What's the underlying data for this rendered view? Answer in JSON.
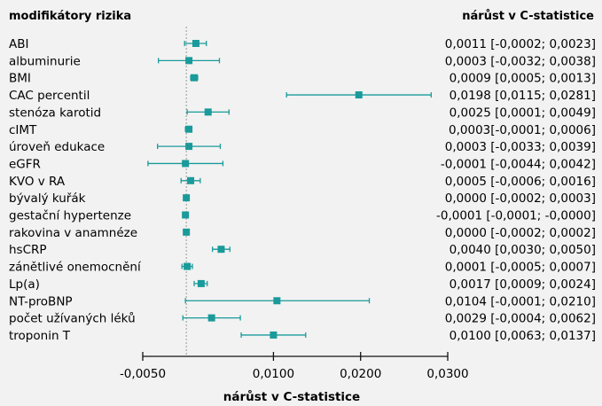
{
  "chart_data": {
    "type": "forest",
    "left_header": "modifikátory rizika",
    "right_header": "nárůst v C-statistice",
    "xlabel": "nárůst v C-statistice",
    "xlim": [
      -0.005,
      0.03
    ],
    "xticks": [
      -0.005,
      0.01,
      0.02,
      0.03
    ],
    "xtick_labels": [
      "-0,0050",
      "0,0100",
      "0,0200",
      "0,0300"
    ],
    "reference_line": 0,
    "colors": {
      "marker": "#1a9a9a",
      "reference": "#999999",
      "text": "#111111"
    },
    "rows": [
      {
        "label": "ABI",
        "estimate": 0.0011,
        "lower": -0.0002,
        "upper": 0.0023,
        "text": "0,0011 [-0,0002; 0,0023]"
      },
      {
        "label": "albuminurie",
        "estimate": 0.0003,
        "lower": -0.0032,
        "upper": 0.0038,
        "text": "0,0003 [-0,0032; 0,0038]"
      },
      {
        "label": "BMI",
        "estimate": 0.0009,
        "lower": 0.0005,
        "upper": 0.0013,
        "text": "0,0009 [0,0005; 0,0013]"
      },
      {
        "label": "CAC percentil",
        "estimate": 0.0198,
        "lower": 0.0115,
        "upper": 0.0281,
        "text": "0,0198 [0,0115; 0,0281]"
      },
      {
        "label": "stenóza karotid",
        "estimate": 0.0025,
        "lower": 0.0001,
        "upper": 0.0049,
        "text": "0,0025 [0,0001; 0,0049]"
      },
      {
        "label": "cIMT",
        "estimate": 0.0003,
        "lower": -0.0001,
        "upper": 0.0006,
        "text": "0,0003[-0,0001; 0,0006]"
      },
      {
        "label": "úroveň edukace",
        "estimate": 0.0003,
        "lower": -0.0033,
        "upper": 0.0039,
        "text": "0,0003 [-0,0033; 0,0039]"
      },
      {
        "label": "eGFR",
        "estimate": -0.0001,
        "lower": -0.0044,
        "upper": 0.0042,
        "text": "-0,0001 [-0,0044; 0,0042]"
      },
      {
        "label": "KVO v RA",
        "estimate": 0.0005,
        "lower": -0.0006,
        "upper": 0.0016,
        "text": "0,0005 [-0,0006; 0,0016]"
      },
      {
        "label": "bývalý kuřák",
        "estimate": 0.0,
        "lower": -0.0002,
        "upper": 0.0003,
        "text": "0,0000 [-0,0002; 0,0003]"
      },
      {
        "label": "gestační hypertenze",
        "estimate": -0.0001,
        "lower": -0.0001,
        "upper": -0.0,
        "text": "-0,0001 [-0,0001; -0,0000]"
      },
      {
        "label": "rakovina v anamnéze",
        "estimate": 0.0,
        "lower": -0.0002,
        "upper": 0.0002,
        "text": "0,0000 [-0,0002; 0,0002]"
      },
      {
        "label": "hsCRP",
        "estimate": 0.004,
        "lower": 0.003,
        "upper": 0.005,
        "text": "0,0040 [0,0030; 0,0050]"
      },
      {
        "label": "zánětlivé onemocnění",
        "estimate": 0.0001,
        "lower": -0.0005,
        "upper": 0.0007,
        "text": "0,0001 [-0,0005; 0,0007]"
      },
      {
        "label": "Lp(a)",
        "estimate": 0.0017,
        "lower": 0.0009,
        "upper": 0.0024,
        "text": "0,0017 [0,0009; 0,0024]"
      },
      {
        "label": "NT-proBNP",
        "estimate": 0.0104,
        "lower": -0.0001,
        "upper": 0.021,
        "text": "0,0104 [-0,0001; 0,0210]"
      },
      {
        "label": "počet užívaných léků",
        "estimate": 0.0029,
        "lower": -0.0004,
        "upper": 0.0062,
        "text": "0,0029 [-0,0004; 0,0062]"
      },
      {
        "label": "troponin T",
        "estimate": 0.01,
        "lower": 0.0063,
        "upper": 0.0137,
        "text": "0,0100 [0,0063; 0,0137]"
      }
    ]
  }
}
